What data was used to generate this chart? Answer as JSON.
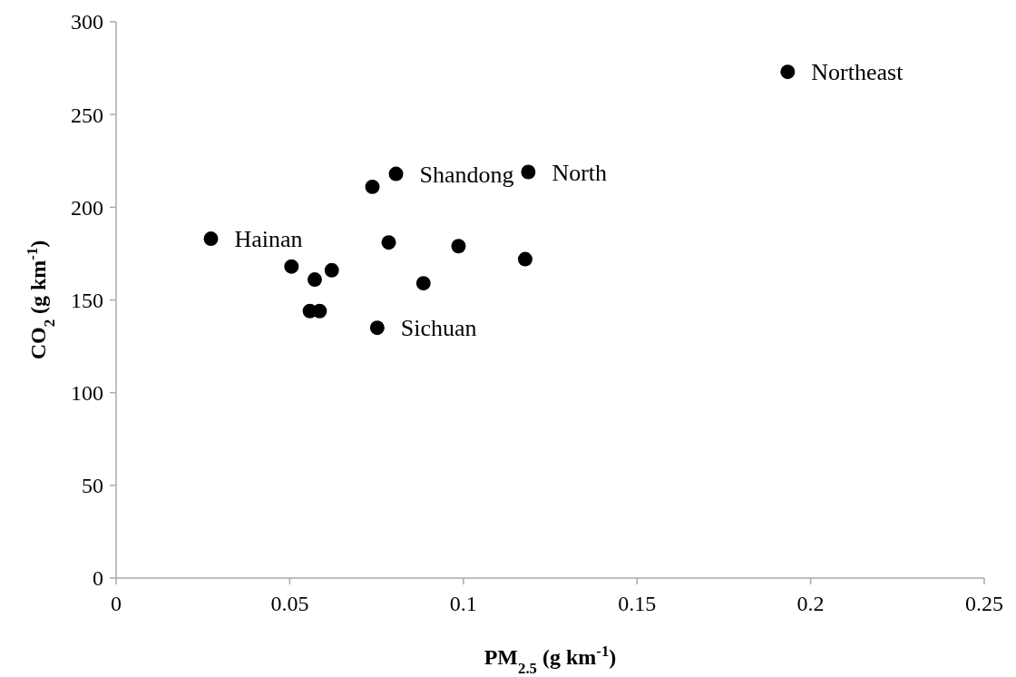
{
  "chart_data": {
    "type": "scatter",
    "xlabel": "PM$_{2.5}$ (g km$^{-1}$)",
    "ylabel": "CO$_{2}$ (g km$^{-1}$)",
    "x": [
      0.0273,
      0.0505,
      0.0572,
      0.0621,
      0.0558,
      0.0586,
      0.0752,
      0.0738,
      0.0806,
      0.0785,
      0.0986,
      0.0885,
      0.1178,
      0.1187,
      0.1934
    ],
    "series": [
      {
        "color": "#000000",
        "values": [
          183,
          168,
          161,
          166,
          144,
          144,
          135,
          211,
          218,
          181,
          179,
          159,
          172,
          219,
          273
        ]
      }
    ],
    "xlim": [
      0,
      0.25
    ],
    "xticks": [
      0,
      0.05,
      0.1,
      0.15,
      0.2,
      0.25
    ],
    "ylim": [
      0,
      300
    ],
    "yticks": [
      0,
      50,
      100,
      150,
      200,
      250,
      300
    ],
    "grid": false,
    "marker": "circle",
    "annotations": [
      {
        "text": "Hainan",
        "x": 0.0273,
        "y": 183
      },
      {
        "text": "Shandong",
        "x": 0.0806,
        "y": 218
      },
      {
        "text": "North",
        "x": 0.1187,
        "y": 219
      },
      {
        "text": "Northeast",
        "x": 0.1934,
        "y": 273
      },
      {
        "text": "Sichuan",
        "x": 0.0752,
        "y": 135
      }
    ]
  }
}
